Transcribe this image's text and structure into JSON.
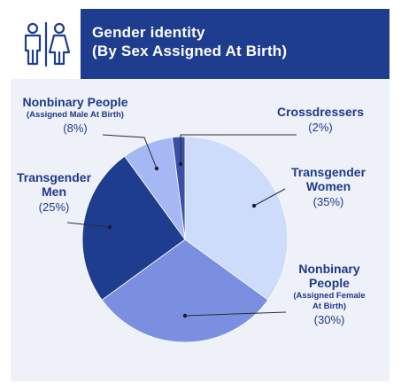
{
  "header": {
    "title_line1": "Gender identity",
    "title_line2": "(By Sex Assigned At Birth)",
    "icon": "restroom-male-female-icon"
  },
  "colors": {
    "header_bg": "#1e3d8f",
    "panel_bg": "#eef1f8",
    "label_text": "#1e3a8a"
  },
  "chart_data": {
    "type": "pie",
    "title": "Gender identity (By Sex Assigned At Birth)",
    "unit": "%",
    "start_angle_deg": 0,
    "direction": "clockwise",
    "slices": [
      {
        "key": "tw",
        "label_lines": [
          "Transgender",
          "Women"
        ],
        "sublabel_lines": [],
        "value": 35,
        "value_label": "(35%)",
        "color": "#ccdcfa"
      },
      {
        "key": "nbf",
        "label_lines": [
          "Nonbinary",
          "People"
        ],
        "sublabel_lines": [
          "(Assigned Female",
          "At Birth)"
        ],
        "value": 30,
        "value_label": "(30%)",
        "color": "#7b8fe0"
      },
      {
        "key": "tm",
        "label_lines": [
          "Transgender",
          "Men"
        ],
        "sublabel_lines": [],
        "value": 25,
        "value_label": "(25%)",
        "color": "#1f3d8f"
      },
      {
        "key": "nbm",
        "label_lines": [
          "Nonbinary People"
        ],
        "sublabel_lines": [
          "(Assigned Male At Birth)"
        ],
        "value": 8,
        "value_label": "(8%)",
        "color": "#a5b8f3"
      },
      {
        "key": "cd",
        "label_lines": [
          "Crossdressers"
        ],
        "sublabel_lines": [],
        "value": 2,
        "value_label": "(2%)",
        "color": "#3b4fa8"
      }
    ]
  }
}
